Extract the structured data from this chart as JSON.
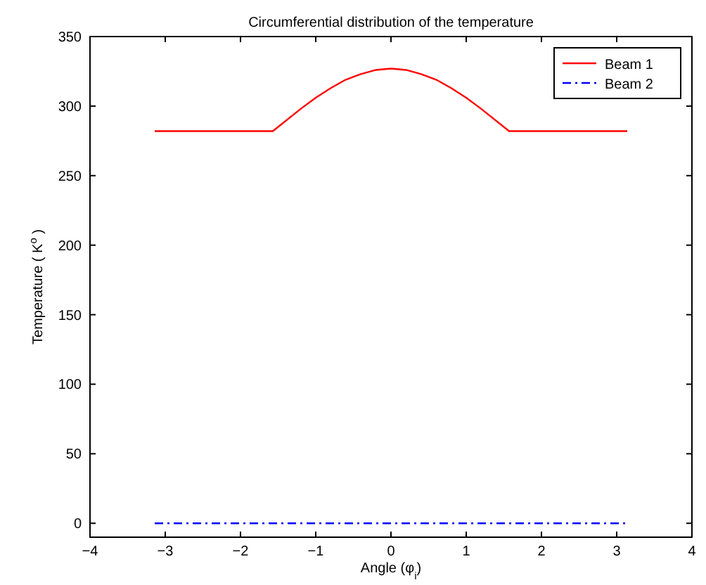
{
  "chart_data": {
    "type": "line",
    "title": "Circumferential distribution of the temperature",
    "xlabel": "Angle (φ$_{i}$)",
    "ylabel": "Temperature ( K$^{o}$ )",
    "xlim": [
      -4,
      4
    ],
    "xticks": [
      {
        "value": -4,
        "label": "−4"
      },
      {
        "value": -3,
        "label": "−3"
      },
      {
        "value": -2,
        "label": "−2"
      },
      {
        "value": -1,
        "label": "−1"
      },
      0,
      1,
      2,
      3,
      4
    ],
    "ylim": [
      -10,
      350
    ],
    "yticks": [
      0,
      50,
      100,
      150,
      200,
      250,
      300,
      350
    ],
    "grid": false,
    "legend": "top right",
    "series": [
      {
        "name": "Beam 1",
        "color": "#ff0000",
        "line_style": "solid",
        "x": [
          -3.14,
          -1.57,
          -1.2,
          -1.0,
          -0.8,
          -0.6,
          -0.4,
          -0.2,
          0,
          0.2,
          0.4,
          0.6,
          0.8,
          1.0,
          1.2,
          1.57,
          3.14
        ],
        "values": [
          282,
          282,
          298,
          306,
          313,
          319,
          323,
          326,
          327,
          326,
          323,
          319,
          313,
          306,
          298,
          282,
          282
        ]
      },
      {
        "name": "Beam 2",
        "color": "#0000ff",
        "line_style": "dashdot",
        "x": [
          -3.14,
          3.14
        ],
        "values": [
          0,
          0
        ]
      }
    ]
  }
}
